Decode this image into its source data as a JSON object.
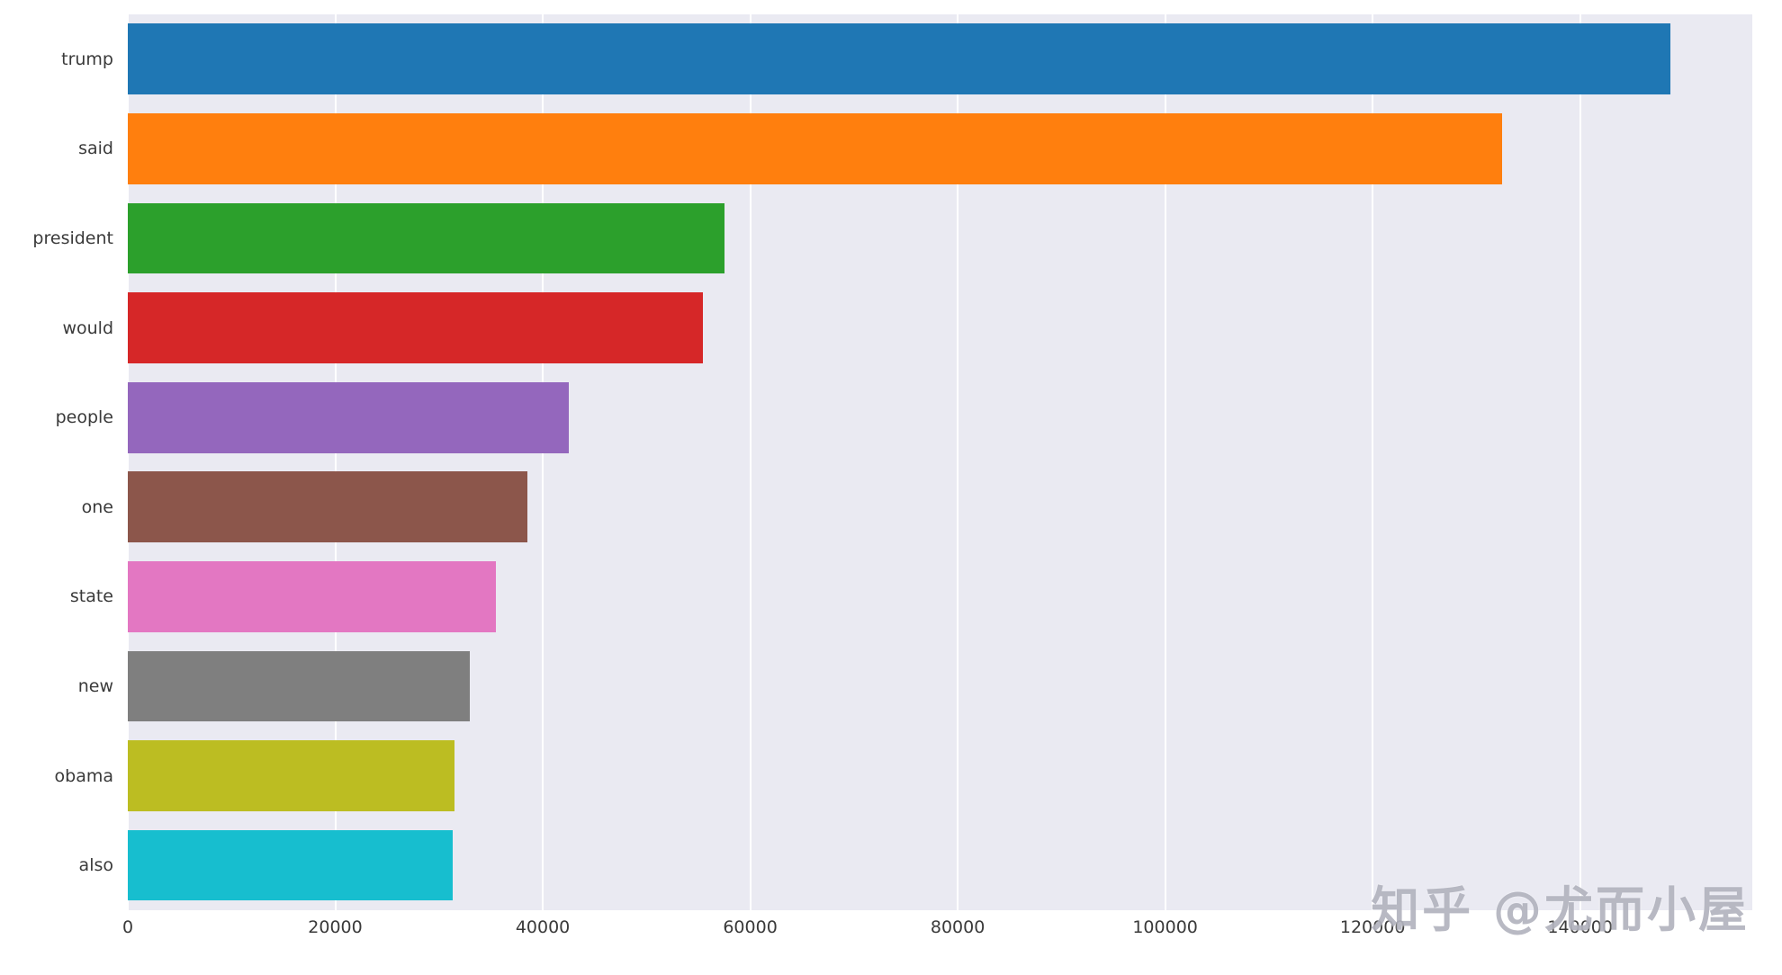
{
  "watermark": "知乎 @尤而小屋",
  "chart_data": {
    "type": "bar",
    "orientation": "horizontal",
    "title": "",
    "xlabel": "",
    "ylabel": "",
    "categories": [
      "trump",
      "said",
      "president",
      "would",
      "people",
      "one",
      "state",
      "new",
      "obama",
      "also"
    ],
    "values": [
      148700,
      132500,
      57500,
      55400,
      42500,
      38500,
      35500,
      33000,
      31500,
      31300
    ],
    "xticks": [
      0,
      20000,
      40000,
      60000,
      80000,
      100000,
      120000,
      140000
    ],
    "xlim": [
      0,
      156600
    ],
    "grid": "vertical-white-gridlines",
    "legend": "none",
    "plot_background": "#eaeaf2",
    "figure_background": "#ffffff",
    "palette": [
      "#1f77b4",
      "#ff7f0e",
      "#2ca02c",
      "#d62728",
      "#9467bd",
      "#8c564b",
      "#e377c2",
      "#7f7f7f",
      "#bcbd22",
      "#17becf"
    ]
  }
}
